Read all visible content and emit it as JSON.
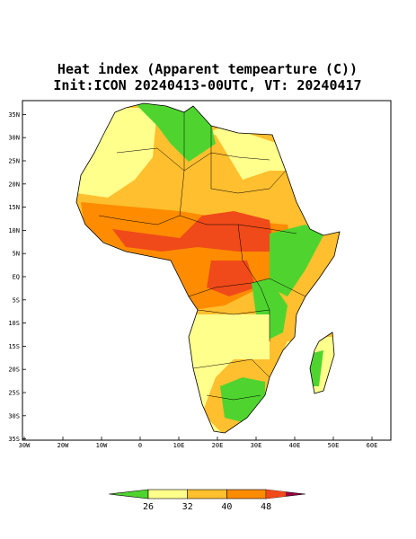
{
  "map": {
    "title": "Heat index (Apparent tempearture (C))",
    "subtitle": "Init:ICON 20240413-00UTC, VT: 20240417",
    "lat_ticks": [
      {
        "value": 35,
        "label": "35N"
      },
      {
        "value": 30,
        "label": "30N"
      },
      {
        "value": 25,
        "label": "25N"
      },
      {
        "value": 20,
        "label": "20N"
      },
      {
        "value": 15,
        "label": "15N"
      },
      {
        "value": 10,
        "label": "10N"
      },
      {
        "value": 5,
        "label": "5N"
      },
      {
        "value": 0,
        "label": "EQ"
      },
      {
        "value": -5,
        "label": "5S"
      },
      {
        "value": -10,
        "label": "10S"
      },
      {
        "value": -15,
        "label": "15S"
      },
      {
        "value": -20,
        "label": "20S"
      },
      {
        "value": -25,
        "label": "25S"
      },
      {
        "value": -30,
        "label": "30S"
      },
      {
        "value": -35,
        "label": "35S"
      }
    ],
    "lon_ticks": [
      {
        "value": -30,
        "label": "30W"
      },
      {
        "value": -20,
        "label": "20W"
      },
      {
        "value": -10,
        "label": "10W"
      },
      {
        "value": 0,
        "label": "0"
      },
      {
        "value": 10,
        "label": "10E"
      },
      {
        "value": 20,
        "label": "20E"
      },
      {
        "value": 30,
        "label": "30E"
      },
      {
        "value": 40,
        "label": "40E"
      },
      {
        "value": 50,
        "label": "50E"
      },
      {
        "value": 60,
        "label": "60E"
      }
    ],
    "colorbar": {
      "levels": [
        26,
        32,
        40,
        48
      ],
      "colors": [
        "#4fd42f",
        "#ffff8c",
        "#ffbf2e",
        "#ff8c00",
        "#f04a1a",
        "#9b0040"
      ]
    }
  }
}
